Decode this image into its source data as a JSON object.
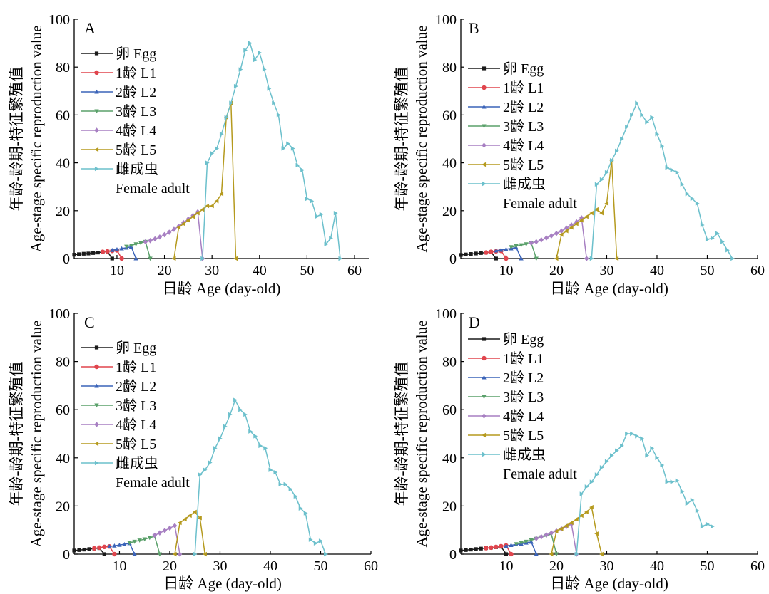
{
  "figure": {
    "xlabel": "日龄 Age (day-old)",
    "ylabel_line1": "年龄-龄期-特征繁殖值",
    "ylabel_line2": "Age-stage specific reproduction value",
    "legend": [
      "卵 Egg",
      "1龄 L1",
      "2龄 L2",
      "3龄 L3",
      "4龄 L4",
      "5龄 L5",
      "雌成虫",
      "Female adult"
    ],
    "series_colors": {
      "egg": "#1a1a1a",
      "L1": "#e0454d",
      "L2": "#3a63b8",
      "L3": "#5aa06a",
      "L4": "#a77fc2",
      "L5": "#b59a1e",
      "female": "#6cc0cc"
    }
  },
  "chart_data": [
    {
      "panel": "A",
      "type": "line",
      "xlim": [
        1,
        63
      ],
      "ylim": [
        0,
        100
      ],
      "xticks": [
        10,
        20,
        30,
        40,
        50,
        60
      ],
      "yticks": [
        0,
        20,
        40,
        60,
        80,
        100
      ],
      "series": [
        {
          "name": "卵 Egg",
          "key": "egg",
          "marker": "square",
          "x": [
            1,
            2,
            3,
            4,
            5,
            6,
            7,
            8,
            9
          ],
          "y": [
            1.6,
            1.8,
            2.0,
            2.1,
            2.3,
            2.5,
            2.7,
            2.9,
            0
          ]
        },
        {
          "name": "1龄 L1",
          "key": "L1",
          "marker": "circle",
          "x": [
            7,
            8,
            9,
            10,
            11
          ],
          "y": [
            2.8,
            3.0,
            3.2,
            3.4,
            0
          ]
        },
        {
          "name": "2龄 L2",
          "key": "L2",
          "marker": "triangle-up",
          "x": [
            9,
            10,
            11,
            12,
            13,
            14
          ],
          "y": [
            3.5,
            3.8,
            4.2,
            4.5,
            4.9,
            0
          ]
        },
        {
          "name": "3龄 L3",
          "key": "L3",
          "marker": "triangle-down",
          "x": [
            12,
            13,
            14,
            15,
            16,
            17
          ],
          "y": [
            5.0,
            5.5,
            6.0,
            6.5,
            7.0,
            0
          ]
        },
        {
          "name": "4龄 L4",
          "key": "L4",
          "marker": "diamond",
          "x": [
            16,
            17,
            18,
            19,
            20,
            21,
            22,
            23,
            24,
            25,
            26,
            27,
            28
          ],
          "y": [
            7.0,
            7.5,
            8.2,
            9.0,
            10.0,
            11.0,
            12.2,
            13.5,
            15.0,
            16.5,
            18.0,
            19.5,
            0
          ]
        },
        {
          "name": "5龄 L5",
          "key": "L5",
          "marker": "triangle-left",
          "x": [
            22,
            23,
            24,
            25,
            26,
            27,
            28,
            29,
            30,
            31,
            32,
            33,
            34,
            35
          ],
          "y": [
            0,
            13.0,
            14.5,
            16.0,
            17.5,
            19.0,
            20.5,
            22.0,
            22.0,
            24.0,
            27.0,
            59.0,
            65.0,
            0
          ]
        },
        {
          "name": "雌成虫 Female adult",
          "key": "female",
          "marker": "triangle-right",
          "x": [
            28,
            29,
            30,
            31,
            32,
            33,
            34,
            35,
            36,
            37,
            38,
            39,
            40,
            41,
            42,
            43,
            44,
            45,
            46,
            47,
            48,
            49,
            50,
            51,
            52,
            53,
            54,
            55,
            56,
            57
          ],
          "y": [
            0,
            40,
            44,
            46,
            52,
            59,
            65,
            72,
            79,
            87,
            90,
            83,
            86,
            79,
            71,
            65,
            60,
            46,
            48,
            46,
            39,
            37,
            25,
            24,
            17.5,
            18.5,
            6,
            8.5,
            19,
            0
          ]
        }
      ]
    },
    {
      "panel": "B",
      "type": "line",
      "xlim": [
        1,
        60
      ],
      "ylim": [
        0,
        100
      ],
      "xticks": [
        10,
        20,
        30,
        40,
        50,
        60
      ],
      "yticks": [
        0,
        20,
        40,
        60,
        80,
        100
      ],
      "series": [
        {
          "name": "卵 Egg",
          "key": "egg",
          "marker": "square",
          "x": [
            1,
            2,
            3,
            4,
            5,
            6,
            7,
            8
          ],
          "y": [
            1.5,
            1.7,
            1.9,
            2.1,
            2.3,
            2.5,
            2.7,
            0
          ]
        },
        {
          "name": "1龄 L1",
          "key": "L1",
          "marker": "circle",
          "x": [
            6,
            7,
            8,
            9,
            10
          ],
          "y": [
            2.5,
            2.8,
            3.0,
            3.2,
            0
          ]
        },
        {
          "name": "2龄 L2",
          "key": "L2",
          "marker": "triangle-up",
          "x": [
            8,
            9,
            10,
            11,
            12,
            13
          ],
          "y": [
            3.3,
            3.6,
            3.9,
            4.2,
            4.6,
            0
          ]
        },
        {
          "name": "3龄 L3",
          "key": "L3",
          "marker": "triangle-down",
          "x": [
            11,
            12,
            13,
            14,
            15,
            16
          ],
          "y": [
            4.8,
            5.2,
            5.6,
            6.0,
            6.5,
            0
          ]
        },
        {
          "name": "4龄 L4",
          "key": "L4",
          "marker": "diamond",
          "x": [
            15,
            16,
            17,
            18,
            19,
            20,
            21,
            22,
            23,
            24,
            25,
            26
          ],
          "y": [
            6.5,
            7.0,
            7.8,
            8.6,
            9.5,
            10.5,
            11.5,
            12.7,
            14.0,
            15.3,
            17.0,
            0
          ]
        },
        {
          "name": "5龄 L5",
          "key": "L5",
          "marker": "triangle-left",
          "x": [
            20,
            21,
            22,
            23,
            24,
            25,
            26,
            27,
            28,
            29,
            30,
            31,
            32
          ],
          "y": [
            0,
            10.0,
            11.5,
            13.0,
            14.5,
            16.0,
            17.5,
            19.0,
            20.5,
            19.0,
            23.0,
            41.0,
            0
          ]
        },
        {
          "name": "雌成虫 Female adult",
          "key": "female",
          "marker": "triangle-right",
          "x": [
            27,
            28,
            29,
            30,
            31,
            32,
            33,
            34,
            35,
            36,
            37,
            38,
            39,
            40,
            41,
            42,
            43,
            44,
            45,
            46,
            47,
            48,
            49,
            50,
            51,
            52,
            53,
            54,
            55
          ],
          "y": [
            0,
            31,
            33,
            36,
            41,
            45,
            50,
            55,
            60,
            65,
            60,
            57,
            59,
            52,
            47,
            38,
            37,
            36,
            31,
            27,
            25,
            23,
            14,
            8,
            8.5,
            10.5,
            7,
            3.5,
            0
          ]
        }
      ]
    },
    {
      "panel": "C",
      "type": "line",
      "xlim": [
        1,
        60
      ],
      "ylim": [
        0,
        100
      ],
      "xticks": [
        10,
        20,
        30,
        40,
        50,
        60
      ],
      "yticks": [
        0,
        20,
        40,
        60,
        80,
        100
      ],
      "series": [
        {
          "name": "卵 Egg",
          "key": "egg",
          "marker": "square",
          "x": [
            1,
            2,
            3,
            4,
            5,
            6,
            7
          ],
          "y": [
            1.5,
            1.7,
            1.9,
            2.1,
            2.3,
            2.5,
            0
          ]
        },
        {
          "name": "1龄 L1",
          "key": "L1",
          "marker": "circle",
          "x": [
            5,
            6,
            7,
            8,
            9
          ],
          "y": [
            2.4,
            2.7,
            3.0,
            3.2,
            0
          ]
        },
        {
          "name": "2龄 L2",
          "key": "L2",
          "marker": "triangle-up",
          "x": [
            8,
            9,
            10,
            11,
            12,
            13
          ],
          "y": [
            3.2,
            3.5,
            3.8,
            4.1,
            4.5,
            0
          ]
        },
        {
          "name": "3龄 L3",
          "key": "L3",
          "marker": "triangle-down",
          "x": [
            12,
            13,
            14,
            15,
            16,
            17,
            18
          ],
          "y": [
            4.7,
            5.2,
            5.7,
            6.2,
            6.8,
            7.4,
            0
          ]
        },
        {
          "name": "4龄 L4",
          "key": "L4",
          "marker": "diamond",
          "x": [
            17,
            18,
            19,
            20,
            21,
            22
          ],
          "y": [
            7.8,
            8.8,
            9.8,
            10.8,
            11.8,
            0
          ]
        },
        {
          "name": "5龄 L5",
          "key": "L5",
          "marker": "triangle-left",
          "x": [
            21,
            22,
            23,
            24,
            25,
            26,
            27
          ],
          "y": [
            0,
            13.0,
            14.5,
            16.0,
            17.5,
            15.0,
            0
          ]
        },
        {
          "name": "雌成虫 Female adult",
          "key": "female",
          "marker": "triangle-right",
          "x": [
            25,
            26,
            27,
            28,
            29,
            30,
            31,
            32,
            33,
            34,
            35,
            36,
            37,
            38,
            39,
            40,
            41,
            42,
            43,
            44,
            45,
            46,
            47,
            48,
            49,
            50,
            51
          ],
          "y": [
            0,
            33,
            35,
            38,
            44,
            48,
            53,
            58,
            64,
            60,
            58,
            51,
            49,
            45,
            44,
            35,
            34,
            29,
            29,
            27,
            24,
            19,
            17,
            6,
            4.5,
            5.5,
            0
          ]
        }
      ]
    },
    {
      "panel": "D",
      "type": "line",
      "xlim": [
        1,
        60
      ],
      "ylim": [
        0,
        100
      ],
      "xticks": [
        10,
        20,
        30,
        40,
        50,
        60
      ],
      "yticks": [
        0,
        20,
        40,
        60,
        80,
        100
      ],
      "series": [
        {
          "name": "卵 Egg",
          "key": "egg",
          "marker": "square",
          "x": [
            1,
            2,
            3,
            4,
            5,
            6,
            7,
            8,
            9,
            10
          ],
          "y": [
            1.5,
            1.7,
            1.9,
            2.1,
            2.3,
            2.5,
            2.7,
            2.9,
            3.1,
            0
          ]
        },
        {
          "name": "1龄 L1",
          "key": "L1",
          "marker": "circle",
          "x": [
            6,
            7,
            8,
            9,
            10,
            11
          ],
          "y": [
            2.5,
            2.7,
            3.0,
            3.3,
            3.6,
            0
          ]
        },
        {
          "name": "2龄 L2",
          "key": "L2",
          "marker": "triangle-up",
          "x": [
            10,
            11,
            12,
            13,
            14,
            15,
            16
          ],
          "y": [
            3.4,
            3.7,
            4.0,
            4.3,
            4.7,
            5.1,
            0
          ]
        },
        {
          "name": "3龄 L3",
          "key": "L3",
          "marker": "triangle-down",
          "x": [
            12,
            13,
            14,
            15,
            16,
            17,
            18,
            19,
            20
          ],
          "y": [
            4.2,
            4.7,
            5.2,
            5.8,
            6.4,
            7.0,
            7.6,
            8.3,
            0
          ]
        },
        {
          "name": "4龄 L4",
          "key": "L4",
          "marker": "diamond",
          "x": [
            16,
            17,
            18,
            19,
            20,
            21,
            22,
            23,
            24
          ],
          "y": [
            6.5,
            7.2,
            8.0,
            8.8,
            9.6,
            10.5,
            11.5,
            12.5,
            0
          ]
        },
        {
          "name": "5龄 L5",
          "key": "L5",
          "marker": "triangle-left",
          "x": [
            19,
            20,
            21,
            22,
            23,
            24,
            25,
            26,
            27,
            28,
            29
          ],
          "y": [
            0,
            9.5,
            10.5,
            11.8,
            13.0,
            14.5,
            16.0,
            17.5,
            19.5,
            8.5,
            0
          ]
        },
        {
          "name": "雌成虫 Female adult",
          "key": "female",
          "marker": "triangle-right",
          "x": [
            24,
            25,
            26,
            27,
            28,
            29,
            30,
            31,
            32,
            33,
            34,
            35,
            36,
            37,
            38,
            39,
            40,
            41,
            42,
            43,
            44,
            45,
            46,
            47,
            48,
            49,
            50,
            51
          ],
          "y": [
            0,
            25,
            28,
            30,
            33,
            36,
            38.5,
            41,
            43,
            45,
            50,
            50,
            49,
            48,
            41,
            44,
            40,
            37,
            30,
            30,
            30.5,
            26,
            21,
            22.5,
            18,
            11.5,
            12.5,
            11.5
          ]
        }
      ]
    }
  ]
}
